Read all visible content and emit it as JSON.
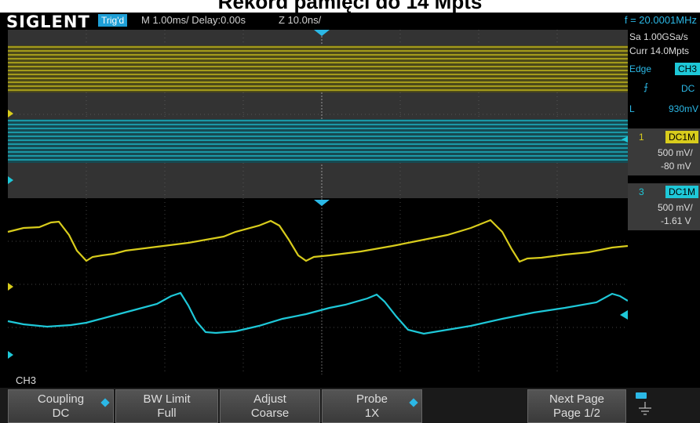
{
  "caption": "Rekord pamięci do 14 Mpts",
  "header": {
    "logo": "SIGLENT",
    "trigger_status": "Trig'd",
    "main_timebase": "M 1.00ms/ Delay:0.00s",
    "zoom_timebase": "Z 10.0ns/",
    "frequency": "f = 20.0001MHz"
  },
  "acquisition": {
    "sample_rate": "Sa 1.00GSa/s",
    "memory_depth": "Curr 14.0Mpts"
  },
  "trigger": {
    "type": "Edge",
    "source": "CH3",
    "slope_icon": "rising-edge-icon",
    "coupling": "DC",
    "level_label": "L",
    "level": "930mV"
  },
  "channels": [
    {
      "number": "1",
      "coupling": "DC1M",
      "scale": "500 mV/",
      "offset": "-80 mV",
      "color": "#d8cc1c"
    },
    {
      "number": "3",
      "coupling": "DC1M",
      "scale": "500 mV/",
      "offset": "-1.61 V",
      "color": "#1ec8d8"
    }
  ],
  "menu": {
    "title": "CH3",
    "softkeys": [
      {
        "label": "Coupling",
        "value": "DC",
        "has_dot": true
      },
      {
        "label": "BW Limit",
        "value": "Full",
        "has_dot": false
      },
      {
        "label": "Adjust",
        "value": "Coarse",
        "has_dot": false
      },
      {
        "label": "Probe",
        "value": "1X",
        "has_dot": true
      },
      {
        "label": "Next Page",
        "value": "Page 1/2",
        "has_dot": false
      }
    ]
  },
  "colors": {
    "ch1": "#d8cc1c",
    "ch3": "#1ec8d8",
    "accent": "#2bb8e6"
  }
}
